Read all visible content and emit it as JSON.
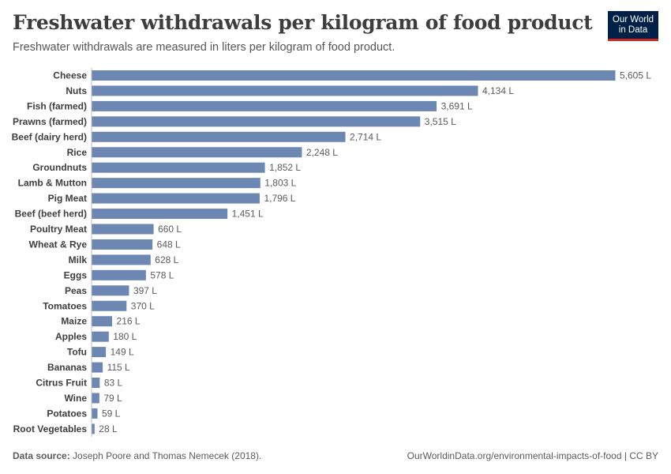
{
  "header": {
    "title": "Freshwater withdrawals per kilogram of food product",
    "subtitle": "Freshwater withdrawals are measured in liters per kilogram of food product.",
    "logo_line1": "Our World",
    "logo_line2": "in Data"
  },
  "footer": {
    "source_label": "Data source:",
    "source_text": "Joseph Poore and Thomas Nemecek (2018).",
    "url_text": "OurWorldinData.org/environmental-impacts-of-food | CC BY"
  },
  "colors": {
    "bar": "#6d87b3",
    "logo_bg": "#002147",
    "logo_accent": "#ce261e"
  },
  "chart_data": {
    "type": "bar",
    "orientation": "horizontal",
    "unit": "L",
    "categories": [
      "Cheese",
      "Nuts",
      "Fish (farmed)",
      "Prawns (farmed)",
      "Beef (dairy herd)",
      "Rice",
      "Groundnuts",
      "Lamb & Mutton",
      "Pig Meat",
      "Beef (beef herd)",
      "Poultry Meat",
      "Wheat & Rye",
      "Milk",
      "Eggs",
      "Peas",
      "Tomatoes",
      "Maize",
      "Apples",
      "Tofu",
      "Bananas",
      "Citrus Fruit",
      "Wine",
      "Potatoes",
      "Root Vegetables"
    ],
    "values": [
      5605,
      4134,
      3691,
      3515,
      2714,
      2248,
      1852,
      1803,
      1796,
      1451,
      660,
      648,
      628,
      578,
      397,
      370,
      216,
      180,
      149,
      115,
      83,
      79,
      59,
      28
    ],
    "value_labels": [
      "5,605 L",
      "4,134 L",
      "3,691 L",
      "3,515 L",
      "2,714 L",
      "2,248 L",
      "1,852 L",
      "1,803 L",
      "1,796 L",
      "1,451 L",
      "660 L",
      "648 L",
      "628 L",
      "578 L",
      "397 L",
      "370 L",
      "216 L",
      "180 L",
      "149 L",
      "115 L",
      "83 L",
      "79 L",
      "59 L",
      "28 L"
    ],
    "xlim": [
      0,
      5605
    ],
    "grid": false,
    "legend": "none"
  }
}
